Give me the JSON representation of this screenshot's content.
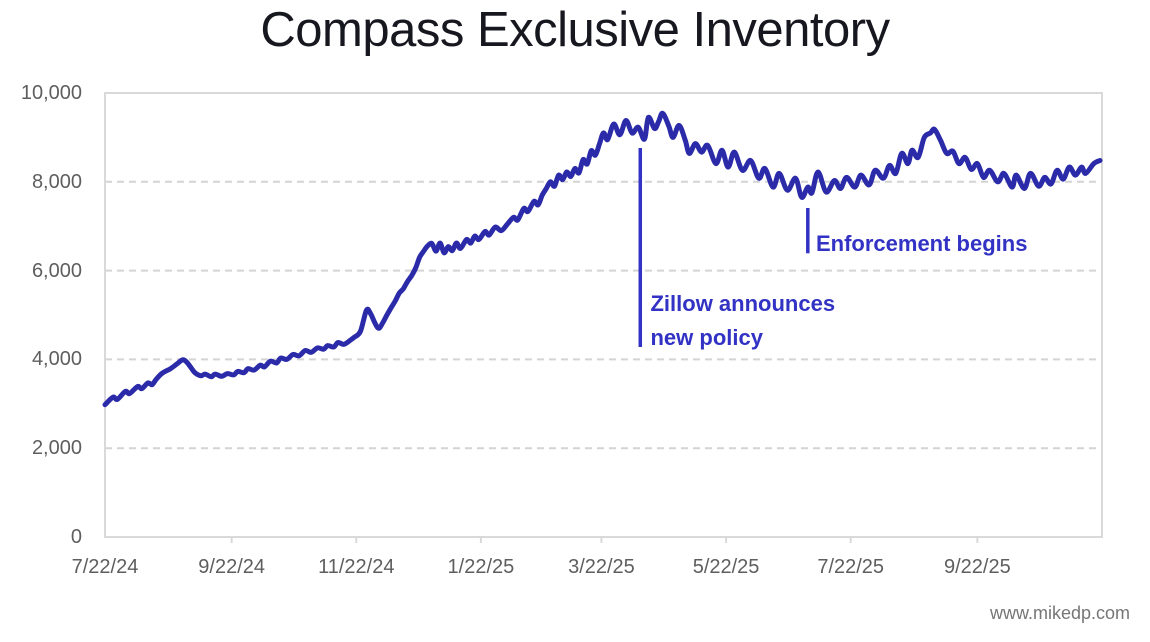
{
  "title": "Compass Exclusive Inventory",
  "attribution": "www.mikedp.com",
  "colors": {
    "series_line": "#2b2baa",
    "annotation": "#3232c4",
    "grid": "#d4d4d4",
    "plot_border": "#d9d9d9",
    "axis_text": "#5e5e5e",
    "title_text": "#171720",
    "background": "#ffffff"
  },
  "chart_data": {
    "type": "line",
    "title": "Compass Exclusive Inventory",
    "xlabel": "",
    "ylabel": "",
    "legend": "none",
    "grid": "horizontal-dashed",
    "x_unit": "days since 7/22/24",
    "x_start_label": "7/22/24",
    "x_end_day": 488,
    "ylim": [
      0,
      10000
    ],
    "yticks": [
      {
        "value": 0,
        "label": "0"
      },
      {
        "value": 2000,
        "label": "2,000"
      },
      {
        "value": 4000,
        "label": "4,000"
      },
      {
        "value": 6000,
        "label": "6,000"
      },
      {
        "value": 8000,
        "label": "8,000"
      },
      {
        "value": 10000,
        "label": "10,000"
      }
    ],
    "xticks": [
      {
        "day": 0,
        "label": "7/22/24"
      },
      {
        "day": 62,
        "label": "9/22/24"
      },
      {
        "day": 123,
        "label": "11/22/24"
      },
      {
        "day": 184,
        "label": "1/22/25"
      },
      {
        "day": 243,
        "label": "3/22/25"
      },
      {
        "day": 304,
        "label": "5/22/25"
      },
      {
        "day": 365,
        "label": "7/22/25"
      },
      {
        "day": 427,
        "label": "9/22/25"
      }
    ],
    "series": [
      {
        "name": "Compass exclusive inventory",
        "points": [
          [
            0,
            2980
          ],
          [
            4,
            3150
          ],
          [
            6,
            3100
          ],
          [
            10,
            3280
          ],
          [
            12,
            3230
          ],
          [
            16,
            3390
          ],
          [
            18,
            3340
          ],
          [
            21,
            3470
          ],
          [
            23,
            3430
          ],
          [
            25,
            3550
          ],
          [
            28,
            3690
          ],
          [
            32,
            3790
          ],
          [
            35,
            3890
          ],
          [
            38,
            3990
          ],
          [
            40,
            3940
          ],
          [
            42,
            3820
          ],
          [
            44,
            3700
          ],
          [
            47,
            3630
          ],
          [
            49,
            3670
          ],
          [
            52,
            3610
          ],
          [
            54,
            3670
          ],
          [
            57,
            3620
          ],
          [
            60,
            3680
          ],
          [
            63,
            3650
          ],
          [
            65,
            3730
          ],
          [
            68,
            3700
          ],
          [
            70,
            3790
          ],
          [
            73,
            3760
          ],
          [
            76,
            3870
          ],
          [
            78,
            3830
          ],
          [
            81,
            3960
          ],
          [
            84,
            3920
          ],
          [
            86,
            4030
          ],
          [
            89,
            4000
          ],
          [
            92,
            4110
          ],
          [
            95,
            4080
          ],
          [
            98,
            4200
          ],
          [
            101,
            4160
          ],
          [
            104,
            4260
          ],
          [
            107,
            4230
          ],
          [
            109,
            4310
          ],
          [
            112,
            4280
          ],
          [
            114,
            4380
          ],
          [
            117,
            4340
          ],
          [
            120,
            4430
          ],
          [
            122,
            4500
          ],
          [
            125,
            4630
          ],
          [
            128,
            5110
          ],
          [
            130,
            5030
          ],
          [
            132,
            4830
          ],
          [
            134,
            4700
          ],
          [
            136,
            4830
          ],
          [
            138,
            5000
          ],
          [
            140,
            5160
          ],
          [
            142,
            5310
          ],
          [
            144,
            5490
          ],
          [
            146,
            5590
          ],
          [
            148,
            5750
          ],
          [
            150,
            5880
          ],
          [
            152,
            6050
          ],
          [
            154,
            6300
          ],
          [
            156,
            6440
          ],
          [
            158,
            6560
          ],
          [
            160,
            6610
          ],
          [
            162,
            6440
          ],
          [
            164,
            6620
          ],
          [
            166,
            6400
          ],
          [
            168,
            6540
          ],
          [
            170,
            6450
          ],
          [
            172,
            6620
          ],
          [
            174,
            6500
          ],
          [
            177,
            6700
          ],
          [
            179,
            6620
          ],
          [
            181,
            6780
          ],
          [
            183,
            6700
          ],
          [
            186,
            6880
          ],
          [
            188,
            6800
          ],
          [
            191,
            6980
          ],
          [
            194,
            6900
          ],
          [
            197,
            7050
          ],
          [
            200,
            7200
          ],
          [
            202,
            7140
          ],
          [
            205,
            7400
          ],
          [
            207,
            7330
          ],
          [
            210,
            7560
          ],
          [
            212,
            7480
          ],
          [
            214,
            7700
          ],
          [
            216,
            7850
          ],
          [
            218,
            8000
          ],
          [
            220,
            7900
          ],
          [
            222,
            8150
          ],
          [
            224,
            8050
          ],
          [
            226,
            8220
          ],
          [
            228,
            8120
          ],
          [
            230,
            8300
          ],
          [
            232,
            8200
          ],
          [
            234,
            8500
          ],
          [
            236,
            8400
          ],
          [
            238,
            8700
          ],
          [
            240,
            8600
          ],
          [
            242,
            8850
          ],
          [
            244,
            9100
          ],
          [
            246,
            8950
          ],
          [
            249,
            9300
          ],
          [
            252,
            9060
          ],
          [
            255,
            9380
          ],
          [
            258,
            9100
          ],
          [
            261,
            9230
          ],
          [
            264,
            8960
          ],
          [
            266,
            9450
          ],
          [
            269,
            9200
          ],
          [
            271,
            9360
          ],
          [
            273,
            9540
          ],
          [
            276,
            9250
          ],
          [
            278,
            9000
          ],
          [
            281,
            9270
          ],
          [
            284,
            8940
          ],
          [
            286,
            8640
          ],
          [
            289,
            8860
          ],
          [
            292,
            8670
          ],
          [
            295,
            8820
          ],
          [
            299,
            8410
          ],
          [
            302,
            8710
          ],
          [
            305,
            8330
          ],
          [
            308,
            8670
          ],
          [
            312,
            8260
          ],
          [
            316,
            8480
          ],
          [
            320,
            8080
          ],
          [
            323,
            8300
          ],
          [
            327,
            7880
          ],
          [
            330,
            8190
          ],
          [
            334,
            7810
          ],
          [
            338,
            8080
          ],
          [
            341,
            7650
          ],
          [
            344,
            7880
          ],
          [
            346,
            7750
          ],
          [
            349,
            8220
          ],
          [
            353,
            7770
          ],
          [
            357,
            8030
          ],
          [
            360,
            7850
          ],
          [
            363,
            8100
          ],
          [
            367,
            7880
          ],
          [
            370,
            8150
          ],
          [
            374,
            7930
          ],
          [
            377,
            8260
          ],
          [
            381,
            8080
          ],
          [
            384,
            8370
          ],
          [
            387,
            8190
          ],
          [
            390,
            8640
          ],
          [
            393,
            8410
          ],
          [
            395,
            8710
          ],
          [
            398,
            8550
          ],
          [
            401,
            9000
          ],
          [
            404,
            9100
          ],
          [
            406,
            9180
          ],
          [
            409,
            8930
          ],
          [
            412,
            8640
          ],
          [
            415,
            8690
          ],
          [
            418,
            8410
          ],
          [
            421,
            8550
          ],
          [
            424,
            8280
          ],
          [
            427,
            8410
          ],
          [
            430,
            8100
          ],
          [
            433,
            8260
          ],
          [
            437,
            8000
          ],
          [
            440,
            8190
          ],
          [
            444,
            7880
          ],
          [
            446,
            8150
          ],
          [
            450,
            7850
          ],
          [
            453,
            8190
          ],
          [
            457,
            7900
          ],
          [
            460,
            8100
          ],
          [
            463,
            7950
          ],
          [
            466,
            8260
          ],
          [
            469,
            8060
          ],
          [
            472,
            8330
          ],
          [
            475,
            8150
          ],
          [
            478,
            8330
          ],
          [
            480,
            8190
          ],
          [
            484,
            8410
          ],
          [
            487,
            8480
          ]
        ]
      }
    ],
    "annotations": [
      {
        "id": "zillow",
        "lines": [
          "Zillow announces",
          "new policy"
        ],
        "marker_day": 262,
        "marker_value_top": 8760,
        "marker_value_bottom": 4280,
        "text_day": 267,
        "text_top_value": 5630
      },
      {
        "id": "enforcement",
        "lines": [
          "Enforcement begins"
        ],
        "marker_day": 344,
        "marker_value_top": 7410,
        "marker_value_bottom": 6390,
        "text_day": 348,
        "text_top_value": 6980
      }
    ]
  }
}
